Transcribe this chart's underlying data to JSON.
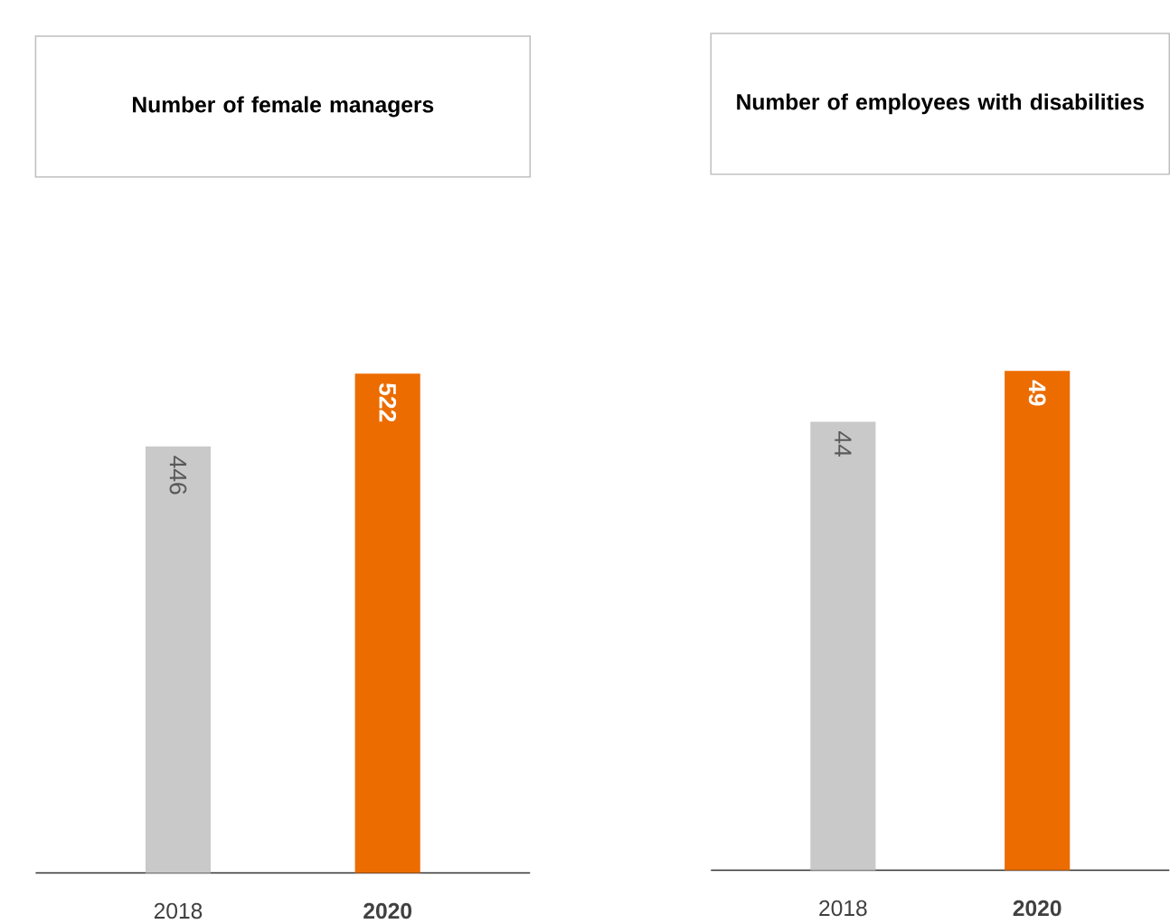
{
  "chart_data": [
    {
      "type": "bar",
      "title": "Number of female managers",
      "categories": [
        "2018",
        "**2020**"
      ],
      "values": [
        446,
        522
      ],
      "colors": [
        "#c8c9c8",
        "#ec6c00"
      ],
      "data_labels": true
    },
    {
      "type": "bar",
      "title": "Number of employees with disabilities",
      "categories": [
        "2018",
        "**2020**"
      ],
      "values": [
        44,
        49
      ],
      "colors": [
        "#c8c9c8",
        "#ec6c00"
      ],
      "data_labels": true
    }
  ]
}
